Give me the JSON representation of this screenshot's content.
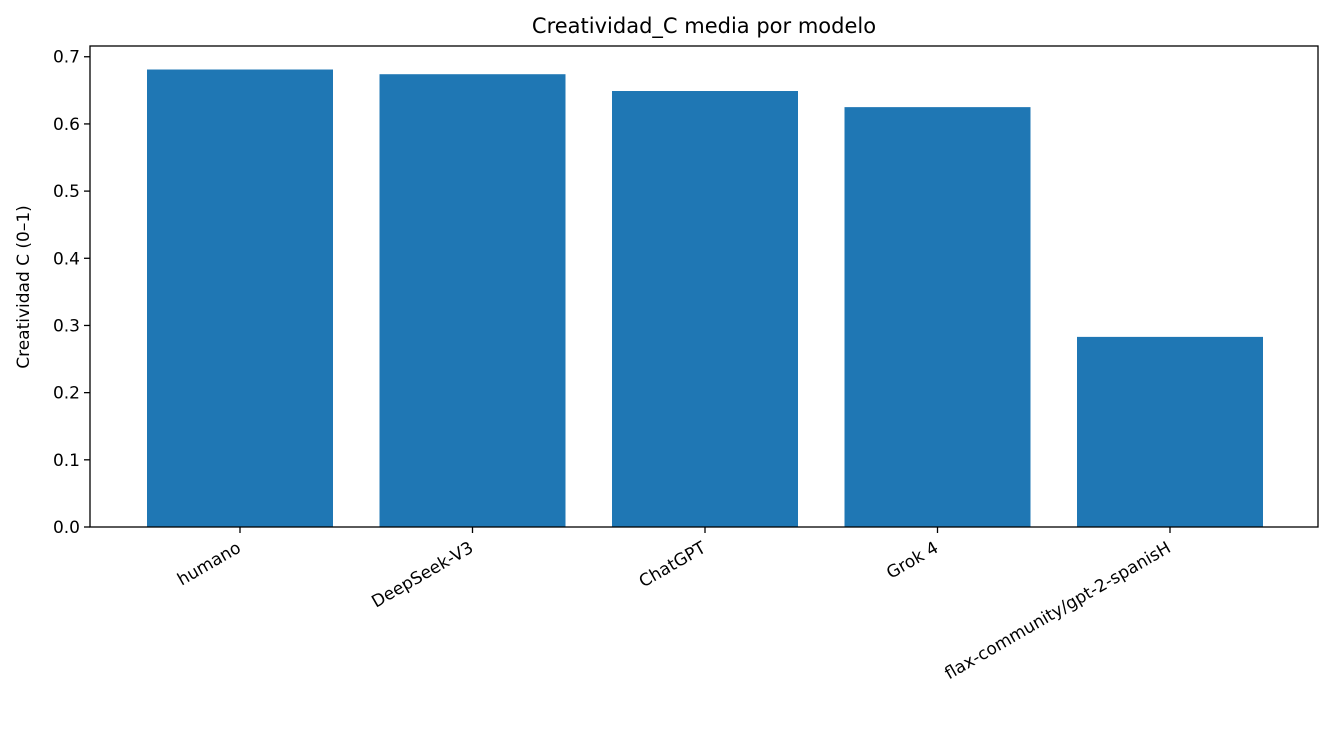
{
  "chart_data": {
    "type": "bar",
    "title": "Creatividad_C media por modelo",
    "xlabel": "",
    "ylabel": "Creatividad C (0–1)",
    "categories": [
      "humano",
      "DeepSeek-V3",
      "ChatGPT",
      "Grok 4",
      "flax-community/gpt-2-spanisH"
    ],
    "values": [
      0.681,
      0.674,
      0.649,
      0.625,
      0.283
    ],
    "ylim": [
      0,
      0.716
    ],
    "yticks": [
      "0.0",
      "0.1",
      "0.2",
      "0.3",
      "0.4",
      "0.5",
      "0.6",
      "0.7"
    ],
    "bar_color": "#1f77b4",
    "grid": false,
    "legend": "none"
  }
}
